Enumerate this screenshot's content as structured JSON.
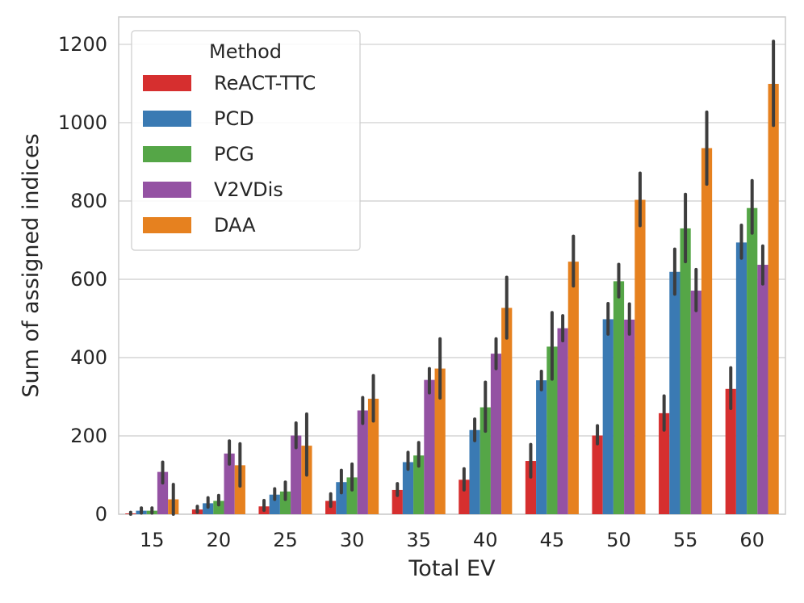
{
  "chart_data": {
    "type": "bar",
    "xlabel": "Total EV",
    "ylabel": "Sum of assigned indices",
    "ylim": [
      0,
      1270
    ],
    "yticks": [
      0,
      200,
      400,
      600,
      800,
      1000,
      1200
    ],
    "grid": true,
    "categories": [
      "15",
      "20",
      "25",
      "30",
      "35",
      "40",
      "45",
      "50",
      "55",
      "60"
    ],
    "legend": {
      "title": "Method",
      "position": "top-left"
    },
    "series": [
      {
        "name": "ReACT-TTC",
        "color": "#d62f2f",
        "values": [
          2,
          12,
          20,
          34,
          62,
          88,
          136,
          201,
          258,
          320
        ],
        "err_low": [
          0,
          5,
          10,
          20,
          48,
          62,
          95,
          180,
          215,
          270
        ],
        "err_high": [
          5,
          20,
          35,
          52,
          78,
          116,
          178,
          226,
          302,
          374
        ]
      },
      {
        "name": "PCD",
        "color": "#3a7ab3",
        "values": [
          9,
          28,
          50,
          82,
          133,
          215,
          342,
          498,
          619,
          694
        ],
        "err_low": [
          3,
          18,
          38,
          55,
          115,
          188,
          318,
          460,
          562,
          654
        ],
        "err_high": [
          16,
          42,
          65,
          112,
          158,
          243,
          365,
          538,
          677,
          738
        ]
      },
      {
        "name": "PCG",
        "color": "#55a647",
        "values": [
          9,
          34,
          58,
          94,
          150,
          273,
          428,
          595,
          730,
          782
        ],
        "err_low": [
          3,
          24,
          38,
          62,
          123,
          212,
          345,
          555,
          645,
          718
        ],
        "err_high": [
          16,
          48,
          82,
          128,
          183,
          337,
          515,
          638,
          817,
          852
        ]
      },
      {
        "name": "V2VDis",
        "color": "#9452a3",
        "values": [
          108,
          155,
          201,
          265,
          343,
          410,
          475,
          497,
          571,
          637
        ],
        "err_low": [
          80,
          128,
          170,
          232,
          310,
          372,
          443,
          460,
          520,
          588
        ],
        "err_high": [
          133,
          187,
          233,
          298,
          372,
          448,
          507,
          537,
          625,
          685
        ]
      },
      {
        "name": "DAA",
        "color": "#e6811f",
        "values": [
          38,
          125,
          175,
          295,
          372,
          527,
          645,
          803,
          935,
          1099
        ],
        "err_low": [
          0,
          72,
          100,
          238,
          297,
          450,
          583,
          737,
          843,
          993
        ],
        "err_high": [
          76,
          180,
          256,
          354,
          448,
          605,
          710,
          871,
          1027,
          1208
        ]
      }
    ]
  }
}
